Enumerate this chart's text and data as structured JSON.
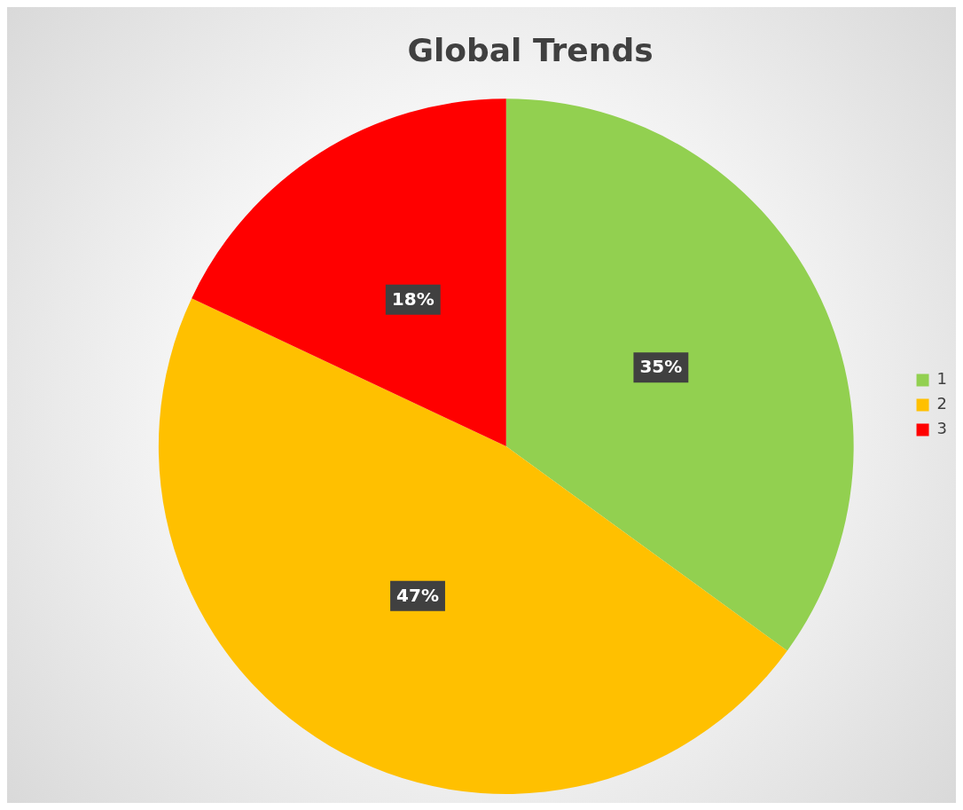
{
  "chart_data": {
    "type": "pie",
    "title": "Global Trends",
    "categories": [
      "1",
      "2",
      "3"
    ],
    "values": [
      35,
      47,
      18
    ],
    "colors": [
      "#92d050",
      "#ffc000",
      "#ff0000"
    ],
    "value_labels": [
      "35%",
      "47%",
      "18%"
    ],
    "legend": "right"
  }
}
